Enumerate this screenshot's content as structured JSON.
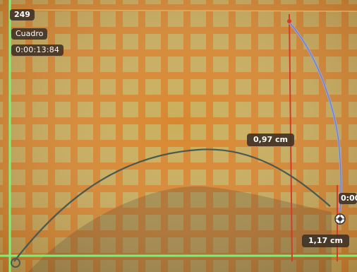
{
  "colors": {
    "background_orange": "#d08a3c",
    "cell_yellow": "#c9b060",
    "grid_line": "#e07a1e",
    "axis_green": "#7ef07a",
    "marker_red": "#d83a2a",
    "path_dark": "#4a5a50",
    "path_blue": "#9aa6d8",
    "label_bg": "#3c3026"
  },
  "overlay": {
    "frame_number": "249",
    "frame_label": "Cuadro",
    "time": "0:00:13:84"
  },
  "measurements": {
    "upper": "0,97 cm",
    "lower": "1,17 cm",
    "clipped": "0:00"
  },
  "icons": {
    "tracked_point": "crosshair-target-icon",
    "origin": "origin-marker-icon"
  }
}
